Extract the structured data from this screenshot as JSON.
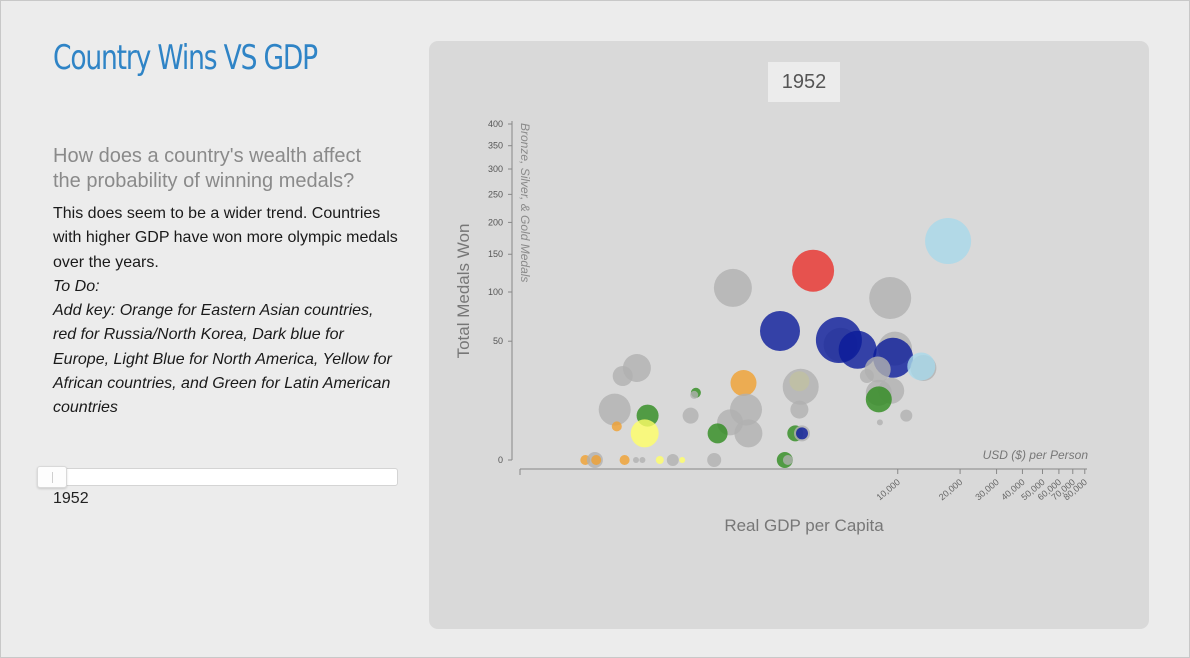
{
  "page": {
    "title": "Country Wins VS GDP",
    "question": "How does a country's wealth affect the probability of winning medals?",
    "text_plain": "This does seem to be a wider trend. ",
    "text_emphasis": "Countries with higher GDP have won more olympic medals over the years.",
    "todo_label": "To Do:",
    "todo_text": "Add key: Orange for Eastern Asian countries, red for Russia/North Korea, Dark blue for Europe, Light Blue for North America, Yellow for African countries, and Green for Latin American countries"
  },
  "slider": {
    "value_label": "1952",
    "value_fraction": 0.0
  },
  "colors": {
    "title": "#2f84c6",
    "panel": "#d9d9d9",
    "grey": "#b0b0b0",
    "orange": "#f0a030",
    "red": "#e8302a",
    "dark_blue": "#0a1a9a",
    "light_blue": "#a8d8ea",
    "yellow": "#ffff66",
    "green": "#2e8b1e"
  },
  "chart_data": {
    "type": "scatter",
    "title": "1952",
    "ylabel": "Total Medals Won",
    "ylabel_sub": "Bronze, Silver, & Gold Medals",
    "xlabel": "Real GDP per Capita",
    "xunit": "USD ($) per Person",
    "x_scale": "log",
    "y_scale": "sqrt",
    "xlim": [
      150,
      82000
    ],
    "ylim": [
      0,
      400
    ],
    "x_ticks": [
      10000,
      20000,
      30000,
      40000,
      50000,
      60000,
      70000,
      80000
    ],
    "x_tick_labels": [
      "10,000",
      "20,000",
      "30,000",
      "40,000",
      "50,000",
      "60,000",
      "70,000",
      "80,000"
    ],
    "y_ticks": [
      0,
      50,
      100,
      150,
      200,
      250,
      300,
      350,
      400
    ],
    "y_tick_labels": [
      "0",
      "50",
      "100",
      "150",
      "200",
      "250",
      "300",
      "350",
      "400"
    ],
    "points": [
      {
        "x": 1600,
        "y": 105,
        "r": 19,
        "c": "grey"
      },
      {
        "x": 9200,
        "y": 93,
        "r": 21,
        "c": "grey"
      },
      {
        "x": 3900,
        "y": 127,
        "r": 21,
        "c": "red"
      },
      {
        "x": 17500,
        "y": 170,
        "r": 23,
        "c": "light_blue"
      },
      {
        "x": 2700,
        "y": 59,
        "r": 20,
        "c": "dark_blue"
      },
      {
        "x": 5300,
        "y": 47,
        "r": 17,
        "c": "grey"
      },
      {
        "x": 5200,
        "y": 51,
        "r": 23,
        "c": "dark_blue"
      },
      {
        "x": 6400,
        "y": 43,
        "r": 19,
        "c": "dark_blue"
      },
      {
        "x": 9700,
        "y": 44,
        "r": 17,
        "c": "grey"
      },
      {
        "x": 9500,
        "y": 37,
        "r": 20,
        "c": "dark_blue"
      },
      {
        "x": 13300,
        "y": 30,
        "r": 13,
        "c": "grey"
      },
      {
        "x": 13000,
        "y": 31,
        "r": 14,
        "c": "light_blue"
      },
      {
        "x": 8000,
        "y": 29,
        "r": 13,
        "c": "grey"
      },
      {
        "x": 7100,
        "y": 25,
        "r": 7,
        "c": "grey"
      },
      {
        "x": 550,
        "y": 30,
        "r": 14,
        "c": "grey"
      },
      {
        "x": 470,
        "y": 25,
        "r": 10,
        "c": "grey"
      },
      {
        "x": 1800,
        "y": 21,
        "r": 13,
        "c": "orange"
      },
      {
        "x": 3350,
        "y": 22,
        "r": 10,
        "c": "yellow"
      },
      {
        "x": 3400,
        "y": 19,
        "r": 18,
        "c": "grey"
      },
      {
        "x": 8100,
        "y": 16,
        "r": 13,
        "c": "grey"
      },
      {
        "x": 9300,
        "y": 17,
        "r": 13,
        "c": "grey"
      },
      {
        "x": 8100,
        "y": 13,
        "r": 13,
        "c": "green"
      },
      {
        "x": 1060,
        "y": 16,
        "r": 5,
        "c": "green"
      },
      {
        "x": 1040,
        "y": 15,
        "r": 4,
        "c": "grey"
      },
      {
        "x": 430,
        "y": 9,
        "r": 16,
        "c": "grey"
      },
      {
        "x": 1850,
        "y": 9,
        "r": 16,
        "c": "grey"
      },
      {
        "x": 3350,
        "y": 9,
        "r": 9,
        "c": "grey"
      },
      {
        "x": 620,
        "y": 7,
        "r": 11,
        "c": "green"
      },
      {
        "x": 1000,
        "y": 7,
        "r": 8,
        "c": "grey"
      },
      {
        "x": 11000,
        "y": 7,
        "r": 6,
        "c": "grey"
      },
      {
        "x": 1550,
        "y": 5,
        "r": 13,
        "c": "grey"
      },
      {
        "x": 440,
        "y": 4,
        "r": 5,
        "c": "orange"
      },
      {
        "x": 8200,
        "y": 5,
        "r": 3,
        "c": "grey"
      },
      {
        "x": 600,
        "y": 2.5,
        "r": 14,
        "c": "yellow"
      },
      {
        "x": 1900,
        "y": 2.5,
        "r": 14,
        "c": "grey"
      },
      {
        "x": 1350,
        "y": 2.5,
        "r": 10,
        "c": "green"
      },
      {
        "x": 3200,
        "y": 2.5,
        "r": 8,
        "c": "green"
      },
      {
        "x": 3450,
        "y": 2.5,
        "r": 8,
        "c": "grey"
      },
      {
        "x": 3450,
        "y": 2.5,
        "r": 6,
        "c": "dark_blue"
      },
      {
        "x": 310,
        "y": 0,
        "r": 5,
        "c": "orange"
      },
      {
        "x": 345,
        "y": 0,
        "r": 8,
        "c": "grey"
      },
      {
        "x": 350,
        "y": 0,
        "r": 5,
        "c": "orange"
      },
      {
        "x": 480,
        "y": 0,
        "r": 5,
        "c": "orange"
      },
      {
        "x": 545,
        "y": 0,
        "r": 3,
        "c": "grey"
      },
      {
        "x": 585,
        "y": 0,
        "r": 3,
        "c": "grey"
      },
      {
        "x": 710,
        "y": 0,
        "r": 4,
        "c": "yellow"
      },
      {
        "x": 820,
        "y": 0,
        "r": 6,
        "c": "grey"
      },
      {
        "x": 910,
        "y": 0,
        "r": 3,
        "c": "yellow"
      },
      {
        "x": 1300,
        "y": 0,
        "r": 7,
        "c": "grey"
      },
      {
        "x": 2850,
        "y": 0,
        "r": 8,
        "c": "green"
      },
      {
        "x": 2950,
        "y": 0,
        "r": 5,
        "c": "grey"
      }
    ]
  }
}
